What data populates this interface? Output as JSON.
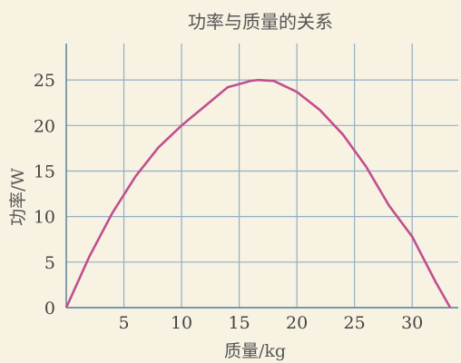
{
  "chart_data": {
    "type": "line",
    "title": "功率与质量的关系",
    "xlabel": "质量/kg",
    "ylabel": "功率/W",
    "xlim": [
      0,
      34
    ],
    "ylim": [
      0,
      29
    ],
    "x_ticks": [
      5,
      10,
      15,
      20,
      25,
      30
    ],
    "y_ticks": [
      0,
      5,
      10,
      15,
      20,
      25
    ],
    "grid": true,
    "series": [
      {
        "color": "#c04f8f",
        "x": [
          0,
          2,
          4,
          6,
          8,
          10,
          12,
          14,
          16,
          16.67,
          18,
          20,
          22,
          24,
          26,
          28,
          30,
          32,
          33.3
        ],
        "y": [
          0,
          5.6,
          10.4,
          14.4,
          17.6,
          20.0,
          22.1,
          24.2,
          24.9,
          25.0,
          24.9,
          23.7,
          21.7,
          19.0,
          15.5,
          11.2,
          7.8,
          2.9,
          0
        ]
      }
    ]
  }
}
